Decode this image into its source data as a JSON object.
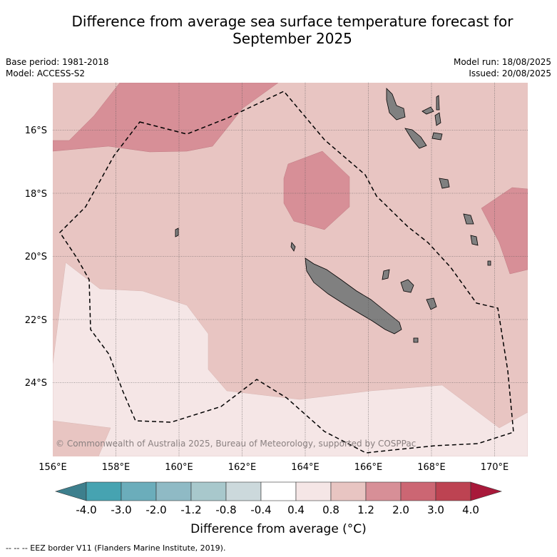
{
  "title": {
    "line1": "Difference from average sea surface temperature forecast for",
    "line2": "September 2025"
  },
  "meta": {
    "base_period": "Base period: 1981-2018",
    "model": "Model: ACCESS-S2",
    "model_run": "Model run: 18/08/2025",
    "issued": "Issued: 20/08/2025"
  },
  "map": {
    "lat_labels": [
      "16°S",
      "18°S",
      "20°S",
      "22°S",
      "24°S"
    ],
    "lon_labels": [
      "156°E",
      "158°E",
      "160°E",
      "162°E",
      "164°E",
      "166°E",
      "168°E",
      "170°E"
    ],
    "copyright": "© Commonwealth of Australia 2025, Bureau of Meteorology, supported by COSPPac",
    "colors": {
      "anomaly_0_4_to_0_8": "#f5e6e6",
      "anomaly_0_8_to_1_2": "#e8c5c2",
      "anomaly_1_2_to_2_0": "#d78f97",
      "land": "#808080",
      "eez_border": "#000000"
    }
  },
  "colorbar": {
    "ticks": [
      "-4.0",
      "-3.0",
      "-2.0",
      "-1.2",
      "-0.8",
      "-0.4",
      "0.4",
      "0.8",
      "1.2",
      "2.0",
      "3.0",
      "4.0"
    ],
    "colors": [
      "#3d7f8d",
      "#46a3b1",
      "#6badbb",
      "#8fbac5",
      "#a8c8cc",
      "#ccd9dc",
      "#ffffff",
      "#f5e6e6",
      "#e8c5c2",
      "#d78f97",
      "#cc6673",
      "#bd4352",
      "#a8193a"
    ],
    "label": "Difference from average (°C)"
  },
  "footer": "-- -- -- EEZ border V11 (Flanders Marine Institute, 2019)."
}
